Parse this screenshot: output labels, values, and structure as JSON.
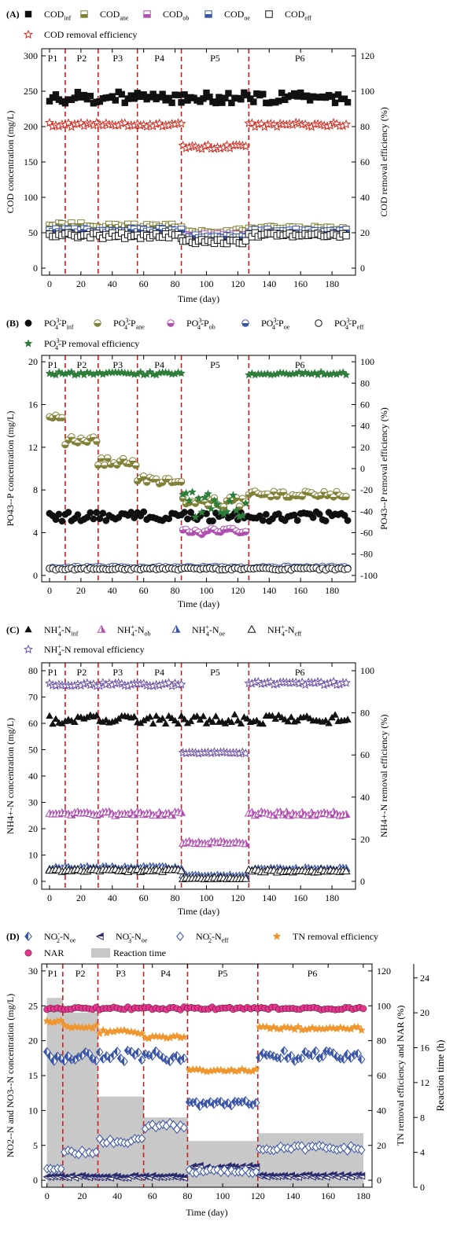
{
  "chart_data": [
    {
      "panel_label": "(A)",
      "type": "scatter",
      "xlabel": "Time (day)",
      "ylabel": "COD concentration (mg/L)",
      "y2label": "COD removal efficiency (%)",
      "xlim": [
        -5,
        195
      ],
      "ylim": [
        -10,
        310
      ],
      "y2lim": [
        -4,
        124
      ],
      "xticks": [
        0,
        20,
        40,
        60,
        80,
        100,
        120,
        140,
        160,
        180
      ],
      "yticks": [
        0,
        50,
        100,
        150,
        200,
        250,
        300
      ],
      "y2ticks": [
        0,
        20,
        40,
        60,
        80,
        100,
        120
      ],
      "phase_boundaries": [
        10,
        31,
        56,
        84,
        127
      ],
      "phases": [
        "P1",
        "P2",
        "P3",
        "P4",
        "P5",
        "P6"
      ],
      "legend": [
        {
          "main": "COD",
          "sub": "inf",
          "sup": "",
          "rest": ""
        },
        {
          "main": "COD",
          "sub": "ane",
          "sup": "",
          "rest": ""
        },
        {
          "main": "COD",
          "sub": "ob",
          "sup": "",
          "rest": ""
        },
        {
          "main": "COD",
          "sub": "oe",
          "sup": "",
          "rest": ""
        },
        {
          "main": "COD",
          "sub": "eff",
          "sup": "",
          "rest": ""
        },
        {
          "main": "COD removal efficiency",
          "sub": "",
          "sup": "",
          "rest": ""
        }
      ],
      "series": [
        {
          "legend_index": 0,
          "marker": "square-filled",
          "axis": "left",
          "color": "#111111",
          "segments": [
            {
              "x0": 0,
              "x1": 190,
              "base": 241,
              "amp": 8
            }
          ]
        },
        {
          "legend_index": 1,
          "marker": "square-half",
          "axis": "left",
          "color": "#808036",
          "segments": [
            {
              "x0": 0,
              "x1": 84,
              "base": 60,
              "amp": 4
            },
            {
              "x0": 85,
              "x1": 126,
              "base": 52,
              "amp": 3
            },
            {
              "x0": 127,
              "x1": 190,
              "base": 56,
              "amp": 3
            }
          ]
        },
        {
          "legend_index": 2,
          "marker": "square-half",
          "axis": "left",
          "color": "#b04fb0",
          "segments": [
            {
              "x0": 85,
              "x1": 126,
              "base": 45,
              "amp": 3
            }
          ]
        },
        {
          "legend_index": 3,
          "marker": "square-half",
          "axis": "left",
          "color": "#3a55a5",
          "segments": [
            {
              "x0": 0,
              "x1": 84,
              "base": 53,
              "amp": 3
            },
            {
              "x0": 85,
              "x1": 126,
              "base": 44,
              "amp": 3
            },
            {
              "x0": 127,
              "x1": 190,
              "base": 52,
              "amp": 3
            }
          ]
        },
        {
          "legend_index": 4,
          "marker": "square-open",
          "axis": "left",
          "color": "#111111",
          "segments": [
            {
              "x0": 0,
              "x1": 84,
              "base": 46,
              "amp": 4
            },
            {
              "x0": 85,
              "x1": 126,
              "base": 37,
              "amp": 3
            },
            {
              "x0": 127,
              "x1": 190,
              "base": 47,
              "amp": 3
            }
          ]
        },
        {
          "legend_index": 5,
          "marker": "star-open",
          "axis": "right",
          "color": "#d42a1e",
          "connect": true,
          "segments": [
            {
              "x0": 0,
              "x1": 84,
              "base": 81,
              "amp": 1.2
            },
            {
              "x0": 85,
              "x1": 126,
              "base": 68.5,
              "amp": 1.2
            },
            {
              "x0": 127,
              "x1": 190,
              "base": 81,
              "amp": 1.2
            }
          ]
        }
      ]
    },
    {
      "panel_label": "(B)",
      "type": "scatter",
      "xlabel": "Time (day)",
      "ylabel": "PO43--P concentration (mg/L)",
      "y2label": "PO43--P removal efficiency (%)",
      "xlim": [
        -5,
        195
      ],
      "ylim": [
        -0.6,
        20.6
      ],
      "y2lim": [
        -106,
        106
      ],
      "xticks": [
        0,
        20,
        40,
        60,
        80,
        100,
        120,
        140,
        160,
        180
      ],
      "yticks": [
        0,
        4,
        8,
        12,
        16,
        20
      ],
      "y2ticks": [
        -100,
        -80,
        -60,
        -40,
        -20,
        0,
        20,
        40,
        60,
        80,
        100
      ],
      "phase_boundaries": [
        10,
        31,
        56,
        84,
        127
      ],
      "phases": [
        "P1",
        "P2",
        "P3",
        "P4",
        "P5",
        "P6"
      ],
      "legend": [
        {
          "main": "PO",
          "sub": "4",
          "sup": "3-",
          "rest": "-P",
          "rest_sub": "inf"
        },
        {
          "main": "PO",
          "sub": "4",
          "sup": "3-",
          "rest": "-P",
          "rest_sub": "ane"
        },
        {
          "main": "PO",
          "sub": "4",
          "sup": "3-",
          "rest": "-P",
          "rest_sub": "ob"
        },
        {
          "main": "PO",
          "sub": "4",
          "sup": "3-",
          "rest": "-P",
          "rest_sub": "oe"
        },
        {
          "main": "PO",
          "sub": "4",
          "sup": "3-",
          "rest": "-P",
          "rest_sub": "eff"
        },
        {
          "main": "PO",
          "sub": "4",
          "sup": "3-",
          "rest": "-P removal efficiency",
          "rest_sub": ""
        }
      ],
      "series": [
        {
          "legend_index": 0,
          "marker": "circle-filled",
          "axis": "left",
          "color": "#111111",
          "segments": [
            {
              "x0": 0,
              "x1": 190,
              "base": 5.5,
              "amp": 0.45
            }
          ]
        },
        {
          "legend_index": 1,
          "marker": "circle-half",
          "axis": "left",
          "color": "#808036",
          "segments": [
            {
              "x0": 0,
              "x1": 9,
              "base": 14.9,
              "amp": 0.15
            },
            {
              "x0": 10,
              "x1": 30,
              "base": 12.6,
              "amp": 0.4
            },
            {
              "x0": 31,
              "x1": 55,
              "base": 10.7,
              "amp": 0.5
            },
            {
              "x0": 56,
              "x1": 84,
              "base": 8.9,
              "amp": 0.4
            },
            {
              "x0": 85,
              "x1": 126,
              "base": 6.9,
              "amp": 0.5
            },
            {
              "x0": 127,
              "x1": 190,
              "base": 7.6,
              "amp": 0.3
            }
          ]
        },
        {
          "legend_index": 2,
          "marker": "circle-half",
          "axis": "left",
          "color": "#b04fb0",
          "segments": [
            {
              "x0": 85,
              "x1": 126,
              "base": 4.1,
              "amp": 0.3
            }
          ]
        },
        {
          "legend_index": 3,
          "marker": "circle-half",
          "axis": "left",
          "color": "#3a55a5",
          "segments": [
            {
              "x0": 0,
              "x1": 190,
              "base": 0.75,
              "amp": 0.1
            }
          ]
        },
        {
          "legend_index": 4,
          "marker": "circle-open",
          "axis": "left",
          "color": "#111111",
          "segments": [
            {
              "x0": 0,
              "x1": 190,
              "base": 0.6,
              "amp": 0.1
            }
          ]
        },
        {
          "legend_index": 5,
          "marker": "star-filled",
          "axis": "right",
          "color": "#2e7d3a",
          "segments": [
            {
              "x0": 0,
              "x1": 84,
              "base": 89,
              "amp": 1.5
            },
            {
              "x0": 85,
              "x1": 126,
              "base": -33,
              "amp": 13
            },
            {
              "x0": 127,
              "x1": 190,
              "base": 89,
              "amp": 1.5
            }
          ]
        }
      ]
    },
    {
      "panel_label": "(C)",
      "type": "scatter",
      "xlabel": "Time (day)",
      "ylabel": "NH4+-N concentration (mg/L)",
      "y2label": "NH4+-N removal efficiency (%)",
      "xlim": [
        -5,
        195
      ],
      "ylim": [
        -3,
        83
      ],
      "y2lim": [
        -3.75,
        103.75
      ],
      "xticks": [
        0,
        20,
        40,
        60,
        80,
        100,
        120,
        140,
        160,
        180
      ],
      "yticks": [
        0,
        10,
        20,
        30,
        40,
        50,
        60,
        70,
        80
      ],
      "y2ticks": [
        0,
        20,
        40,
        60,
        80,
        100
      ],
      "phase_boundaries": [
        10,
        31,
        56,
        84,
        127
      ],
      "phases": [
        "P1",
        "P2",
        "P3",
        "P4",
        "P5",
        "P6"
      ],
      "legend": [
        {
          "main": "NH",
          "sub": "4",
          "sup": "+",
          "rest": "-N",
          "rest_sub": "inf"
        },
        {
          "main": "NH",
          "sub": "4",
          "sup": "+",
          "rest": "-N",
          "rest_sub": "ob"
        },
        {
          "main": "NH",
          "sub": "4",
          "sup": "+",
          "rest": "-N",
          "rest_sub": "oe"
        },
        {
          "main": "NH",
          "sub": "4",
          "sup": "+",
          "rest": "-N",
          "rest_sub": "eff"
        },
        {
          "main": "NH",
          "sub": "4",
          "sup": "+",
          "rest": "-N removal efficiency",
          "rest_sub": ""
        }
      ],
      "series": [
        {
          "legend_index": 0,
          "marker": "triangle-filled",
          "axis": "left",
          "color": "#111111",
          "segments": [
            {
              "x0": 0,
              "x1": 190,
              "base": 61.5,
              "amp": 1.8
            }
          ]
        },
        {
          "legend_index": 1,
          "marker": "triangle-half",
          "axis": "left",
          "color": "#b04fb0",
          "segments": [
            {
              "x0": 0,
              "x1": 84,
              "base": 25.5,
              "amp": 0.8
            },
            {
              "x0": 85,
              "x1": 126,
              "base": 14.5,
              "amp": 0.5
            },
            {
              "x0": 127,
              "x1": 190,
              "base": 25.5,
              "amp": 0.8
            }
          ]
        },
        {
          "legend_index": 2,
          "marker": "triangle-half",
          "axis": "left",
          "color": "#3a55a5",
          "segments": [
            {
              "x0": 0,
              "x1": 84,
              "base": 5,
              "amp": 0.5
            },
            {
              "x0": 85,
              "x1": 126,
              "base": 2,
              "amp": 0.3
            },
            {
              "x0": 127,
              "x1": 190,
              "base": 4.5,
              "amp": 0.5
            }
          ]
        },
        {
          "legend_index": 3,
          "marker": "triangle-open",
          "axis": "left",
          "color": "#111111",
          "segments": [
            {
              "x0": 0,
              "x1": 84,
              "base": 4,
              "amp": 0.5
            },
            {
              "x0": 85,
              "x1": 126,
              "base": 1,
              "amp": 0.3
            },
            {
              "x0": 127,
              "x1": 190,
              "base": 3.8,
              "amp": 0.5
            }
          ]
        },
        {
          "legend_index": 4,
          "marker": "star-open",
          "axis": "right",
          "color": "#6a4fa8",
          "connect": true,
          "segments": [
            {
              "x0": 0,
              "x1": 84,
              "base": 93.5,
              "amp": 0.8
            },
            {
              "x0": 85,
              "x1": 126,
              "base": 61,
              "amp": 0.4
            },
            {
              "x0": 127,
              "x1": 190,
              "base": 94,
              "amp": 0.8
            }
          ]
        }
      ]
    },
    {
      "panel_label": "(D)",
      "type": "scatter",
      "xlabel": "Time (day)",
      "ylabel": "NO2--N and NO3--N concentration (mg/L)",
      "y2label": "TN removal efficiency and NAR (%)",
      "y3label": "Reaction time (h)",
      "xlim": [
        -3,
        185
      ],
      "ylim": [
        -1,
        31
      ],
      "y2lim": [
        -4,
        124
      ],
      "y3lim": [
        0,
        25.6
      ],
      "xticks": [
        0,
        20,
        40,
        60,
        80,
        100,
        120,
        140,
        160,
        180
      ],
      "yticks": [
        0,
        5,
        10,
        15,
        20,
        25,
        30
      ],
      "y2ticks": [
        0,
        20,
        40,
        60,
        80,
        100,
        120
      ],
      "y3ticks": [
        0,
        4,
        8,
        12,
        16,
        20,
        24
      ],
      "phase_boundaries": [
        9,
        29,
        55,
        80,
        120
      ],
      "phases": [
        "P1",
        "P2",
        "P3",
        "P4",
        "P5",
        "P6"
      ],
      "legend": [
        {
          "main": "NO",
          "sub": "2",
          "sup": "-",
          "rest": "-N",
          "rest_sub": "oe"
        },
        {
          "main": "NO",
          "sub": "3",
          "sup": "-",
          "rest": "-N",
          "rest_sub": "oe"
        },
        {
          "main": "NO",
          "sub": "2",
          "sup": "-",
          "rest": "-N",
          "rest_sub": "eff"
        },
        {
          "main": "TN removal efficiency",
          "sub": "",
          "sup": "",
          "rest": "",
          "rest_sub": ""
        },
        {
          "main": "NAR",
          "sub": "",
          "sup": "",
          "rest": "",
          "rest_sub": ""
        },
        {
          "main": "Reaction time",
          "sub": "",
          "sup": "",
          "rest": "",
          "rest_sub": ""
        }
      ],
      "reaction_time_h": [
        {
          "x0": 0,
          "x1": 9,
          "value": 21.7
        },
        {
          "x0": 9,
          "x1": 29,
          "value": 20
        },
        {
          "x0": 29,
          "x1": 55,
          "value": 10.4
        },
        {
          "x0": 55,
          "x1": 80,
          "value": 8
        },
        {
          "x0": 80,
          "x1": 120,
          "value": 5.3
        },
        {
          "x0": 120,
          "x1": 180,
          "value": 6.2
        }
      ],
      "series": [
        {
          "legend_index": 0,
          "marker": "diamond-half",
          "axis": "left",
          "color": "#3a55a5",
          "segments": [
            {
              "x0": 0,
              "x1": 79,
              "base": 17.8,
              "amp": 0.8
            },
            {
              "x0": 81,
              "x1": 120,
              "base": 11,
              "amp": 0.4
            },
            {
              "x0": 121,
              "x1": 180,
              "base": 17.8,
              "amp": 0.8
            }
          ]
        },
        {
          "legend_index": 1,
          "marker": "tri-left-half",
          "axis": "left",
          "color": "#2a2a6e",
          "segments": [
            {
              "x0": 0,
              "x1": 79,
              "base": 0.5,
              "amp": 0.15
            },
            {
              "x0": 81,
              "x1": 120,
              "base": 1.8,
              "amp": 0.3
            },
            {
              "x0": 121,
              "x1": 180,
              "base": 0.6,
              "amp": 0.15
            }
          ]
        },
        {
          "legend_index": 2,
          "marker": "diamond-open",
          "axis": "left",
          "color": "#3a55a5",
          "segments": [
            {
              "x0": 0,
              "x1": 9,
              "base": 1.6,
              "amp": 0.1
            },
            {
              "x0": 10,
              "x1": 29,
              "base": 4,
              "amp": 0.4
            },
            {
              "x0": 30,
              "x1": 55,
              "base": 5.8,
              "amp": 0.6
            },
            {
              "x0": 56,
              "x1": 79,
              "base": 7.8,
              "amp": 0.5
            },
            {
              "x0": 81,
              "x1": 120,
              "base": 1.3,
              "amp": 0.3
            },
            {
              "x0": 121,
              "x1": 180,
              "base": 4.6,
              "amp": 0.4
            }
          ]
        },
        {
          "legend_index": 3,
          "marker": "star-filled",
          "axis": "right",
          "color": "#f0962e",
          "segments": [
            {
              "x0": 0,
              "x1": 9,
              "base": 91,
              "amp": 0.8
            },
            {
              "x0": 10,
              "x1": 29,
              "base": 88,
              "amp": 1
            },
            {
              "x0": 30,
              "x1": 55,
              "base": 85,
              "amp": 1
            },
            {
              "x0": 56,
              "x1": 79,
              "base": 82,
              "amp": 1
            },
            {
              "x0": 81,
              "x1": 120,
              "base": 63,
              "amp": 0.8
            },
            {
              "x0": 121,
              "x1": 180,
              "base": 87,
              "amp": 1
            }
          ]
        },
        {
          "legend_index": 4,
          "marker": "circle-filled",
          "axis": "right",
          "color": "#e5358c",
          "segments": [
            {
              "x0": 0,
              "x1": 180,
              "base": 98.5,
              "amp": 0.8
            }
          ]
        }
      ]
    }
  ]
}
